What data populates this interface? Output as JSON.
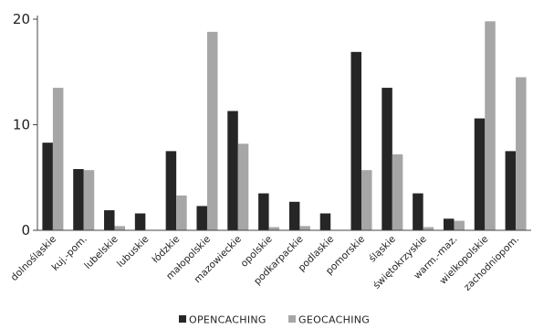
{
  "colors": {
    "opencaching": "#262626",
    "geocaching": "#a6a6a6",
    "axis": "#444444"
  },
  "chart_data": {
    "type": "bar",
    "title": "",
    "xlabel": "",
    "ylabel": "",
    "ylim": [
      0,
      20
    ],
    "yticks": [
      0,
      10,
      20
    ],
    "grid": false,
    "legend_position": "bottom",
    "categories": [
      "dolnośląskie",
      "kuj.-pom.",
      "lubelskie",
      "lubuskie",
      "łódzkie",
      "małopolskie",
      "mazowieckie",
      "opolskie",
      "podkarpackie",
      "podlaskie",
      "pomorskie",
      "śląskie",
      "świętokrzyskie",
      "warm.-maz.",
      "wielkopolskie",
      "zachodniopom."
    ],
    "series": [
      {
        "name": "OPENCACHING",
        "values": [
          8.3,
          5.8,
          1.9,
          1.6,
          7.5,
          2.3,
          11.3,
          3.5,
          2.7,
          1.6,
          16.9,
          13.5,
          3.5,
          1.1,
          10.6,
          7.5
        ]
      },
      {
        "name": "GEOCACHING",
        "values": [
          13.5,
          5.7,
          0.4,
          0.0,
          3.3,
          18.8,
          8.2,
          0.3,
          0.4,
          0.0,
          5.7,
          7.2,
          0.3,
          0.9,
          19.8,
          14.5
        ]
      }
    ]
  }
}
